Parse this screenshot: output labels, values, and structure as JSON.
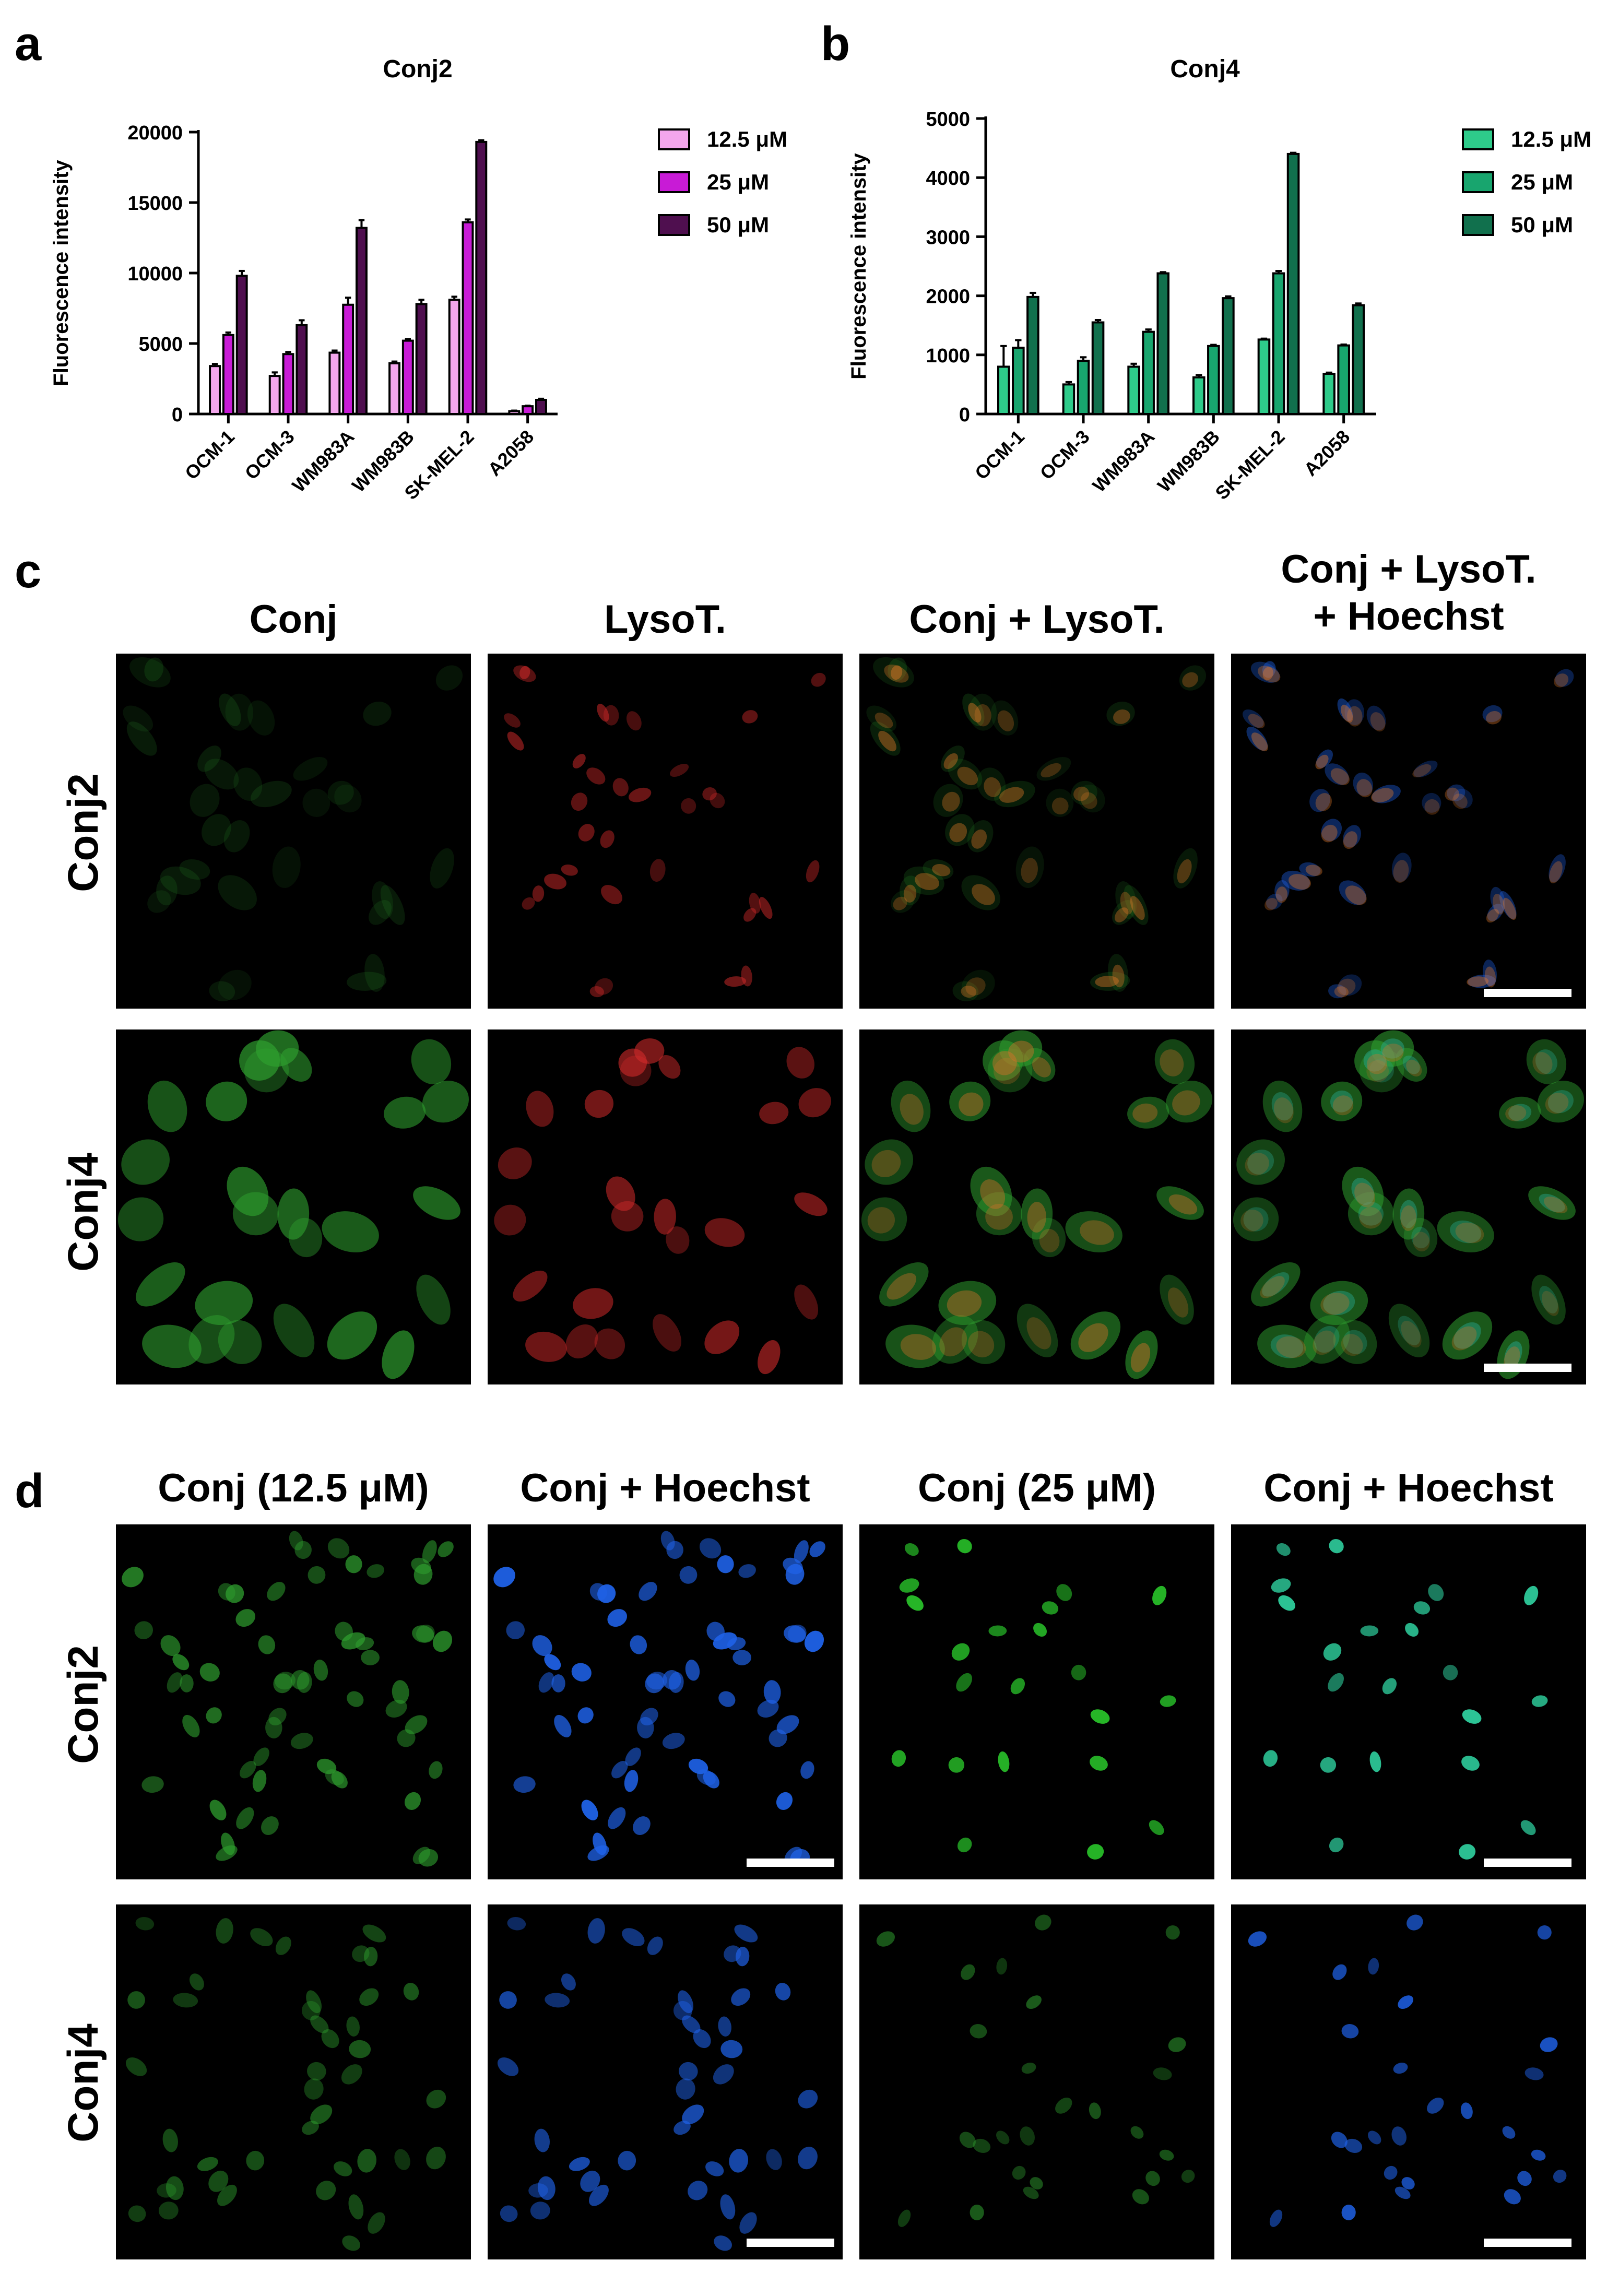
{
  "panels": {
    "a": "a",
    "b": "b",
    "c": "c",
    "d": "d"
  },
  "charts": [
    {
      "id": "chart-a",
      "type": "bar",
      "title": "Conj2",
      "ylabel": "Fluorescence intensity",
      "ylim": [
        0,
        20000
      ],
      "yticks": [
        0,
        5000,
        10000,
        15000,
        20000
      ],
      "categories": [
        "OCM-1",
        "OCM-3",
        "WM983A",
        "WM983B",
        "SK-MEL-2",
        "A2058"
      ],
      "series": [
        {
          "name": "12.5 μM",
          "color": "#f3a6ec",
          "values": [
            3400,
            2700,
            4350,
            3600,
            8100,
            200
          ],
          "errors": [
            150,
            250,
            150,
            120,
            220,
            40
          ]
        },
        {
          "name": "25 μM",
          "color": "#c81bd6",
          "values": [
            5600,
            4250,
            7750,
            5200,
            13600,
            550
          ],
          "errors": [
            180,
            150,
            500,
            120,
            200,
            40
          ]
        },
        {
          "name": "50 μM",
          "color": "#4f0f4f",
          "values": [
            9800,
            6300,
            13200,
            7800,
            19300,
            1000
          ],
          "errors": [
            350,
            350,
            550,
            300,
            120,
            80
          ]
        }
      ]
    },
    {
      "id": "chart-b",
      "type": "bar",
      "title": "Conj4",
      "ylabel": "Fluorescence intensity",
      "ylim": [
        0,
        5000
      ],
      "yticks": [
        0,
        1000,
        2000,
        3000,
        4000,
        5000
      ],
      "categories": [
        "OCM-1",
        "OCM-3",
        "WM983A",
        "WM983B",
        "SK-MEL-2",
        "A2058"
      ],
      "series": [
        {
          "name": "12.5 μM",
          "color": "#2ecb8a",
          "values": [
            800,
            500,
            800,
            620,
            1260,
            680
          ],
          "errors": [
            350,
            40,
            50,
            40,
            15,
            20
          ]
        },
        {
          "name": "25 μM",
          "color": "#18a56e",
          "values": [
            1120,
            900,
            1390,
            1150,
            2380,
            1160
          ],
          "errors": [
            130,
            60,
            40,
            20,
            40,
            15
          ]
        },
        {
          "name": "50 μM",
          "color": "#11704d",
          "values": [
            1980,
            1550,
            2380,
            1960,
            4400,
            1840
          ],
          "errors": [
            70,
            40,
            20,
            30,
            20,
            30
          ]
        }
      ]
    }
  ],
  "panel_c": {
    "columns": [
      "Conj",
      "LysoT.",
      "Conj + LysoT.",
      "Conj + LysoT.\n+ Hoechst"
    ],
    "rows": [
      "Conj2",
      "Conj4"
    ]
  },
  "panel_d": {
    "columns": [
      "Conj (12.5 μM)",
      "Conj + Hoechst",
      "Conj (25 μM)",
      "Conj + Hoechst"
    ],
    "rows": [
      "Conj2",
      "Conj4"
    ]
  },
  "colors": {
    "conj": "#2fa02f",
    "lyso": "#d42a2a",
    "hoechst": "#1f62e8",
    "background": "#000000"
  }
}
